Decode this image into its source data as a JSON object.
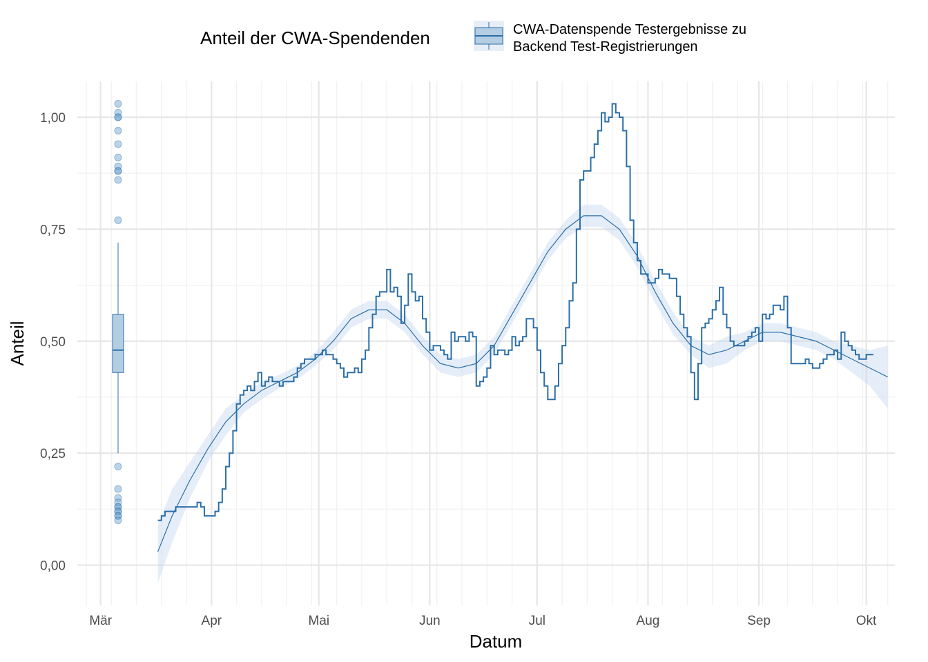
{
  "chart_data": {
    "type": "line",
    "xlabel": "Datum",
    "ylabel": "Anteil",
    "ylim": [
      -0.09,
      1.08
    ],
    "y_ticks": [
      {
        "value": 0.0,
        "label": "0,00"
      },
      {
        "value": 0.25,
        "label": "0,25"
      },
      {
        "value": 0.5,
        "label": "0,50"
      },
      {
        "value": 0.75,
        "label": "0,75"
      },
      {
        "value": 1.0,
        "label": "1,00"
      }
    ],
    "x_day_range": [
      -6.5,
      222
    ],
    "x_ticks": [
      {
        "day": 0,
        "label": "Mär"
      },
      {
        "day": 31,
        "label": "Apr"
      },
      {
        "day": 61,
        "label": "Mai"
      },
      {
        "day": 92,
        "label": "Jun"
      },
      {
        "day": 122,
        "label": "Jul"
      },
      {
        "day": 153,
        "label": "Aug"
      },
      {
        "day": 184,
        "label": "Sep"
      },
      {
        "day": 214,
        "label": "Okt"
      }
    ],
    "legend": {
      "title": "Anteil der CWA-Spendenden",
      "entry_line1": "CWA-Datenspende Testergebnisse zu",
      "entry_line2": "Backend Test-Registrierungen",
      "position": "top"
    },
    "colors": {
      "series": "#2b6ea8",
      "ribbon": "#c6d9f0",
      "box_fill": "#b3cde3",
      "points": "#6a9fcf",
      "grid_major": "#e6e6e6",
      "grid_minor": "#f2f2f2"
    },
    "series": [
      {
        "name": "step",
        "start_day": 16,
        "values": [
          0.1,
          0.11,
          0.12,
          0.12,
          0.12,
          0.13,
          0.13,
          0.13,
          0.13,
          0.13,
          0.13,
          0.14,
          0.13,
          0.11,
          0.11,
          0.11,
          0.12,
          0.14,
          0.17,
          0.22,
          0.25,
          0.3,
          0.36,
          0.38,
          0.39,
          0.4,
          0.39,
          0.41,
          0.43,
          0.4,
          0.41,
          0.42,
          0.41,
          0.41,
          0.4,
          0.41,
          0.41,
          0.41,
          0.42,
          0.44,
          0.45,
          0.46,
          0.46,
          0.46,
          0.47,
          0.47,
          0.48,
          0.47,
          0.47,
          0.46,
          0.45,
          0.44,
          0.42,
          0.43,
          0.43,
          0.44,
          0.43,
          0.46,
          0.48,
          0.53,
          0.56,
          0.6,
          0.61,
          0.61,
          0.66,
          0.61,
          0.62,
          0.6,
          0.54,
          0.58,
          0.65,
          0.61,
          0.59,
          0.6,
          0.55,
          0.52,
          0.48,
          0.49,
          0.49,
          0.48,
          0.47,
          0.46,
          0.52,
          0.5,
          0.51,
          0.51,
          0.5,
          0.52,
          0.51,
          0.4,
          0.41,
          0.42,
          0.44,
          0.49,
          0.47,
          0.48,
          0.48,
          0.47,
          0.48,
          0.51,
          0.49,
          0.5,
          0.51,
          0.55,
          0.55,
          0.53,
          0.48,
          0.43,
          0.4,
          0.37,
          0.37,
          0.4,
          0.45,
          0.49,
          0.53,
          0.59,
          0.63,
          0.75,
          0.86,
          0.88,
          0.88,
          0.91,
          0.94,
          0.97,
          1.01,
          0.99,
          1.0,
          1.03,
          1.01,
          1.0,
          0.97,
          0.89,
          0.77,
          0.72,
          0.68,
          0.65,
          0.65,
          0.63,
          0.63,
          0.64,
          0.66,
          0.65,
          0.65,
          0.64,
          0.64,
          0.6,
          0.56,
          0.53,
          0.51,
          0.43,
          0.37,
          0.45,
          0.53,
          0.54,
          0.55,
          0.57,
          0.59,
          0.62,
          0.56,
          0.53,
          0.5,
          0.49,
          0.49,
          0.49,
          0.5,
          0.51,
          0.52,
          0.53,
          0.5,
          0.56,
          0.55,
          0.56,
          0.58,
          0.58,
          0.57,
          0.6,
          0.53,
          0.45,
          0.45,
          0.45,
          0.45,
          0.46,
          0.45,
          0.44,
          0.44,
          0.45,
          0.46,
          0.47,
          0.47,
          0.48,
          0.46,
          0.52,
          0.5,
          0.49,
          0.48,
          0.47,
          0.46,
          0.46,
          0.47,
          0.47
        ]
      },
      {
        "name": "smooth",
        "days": [
          16,
          20,
          25,
          30,
          35,
          40,
          45,
          50,
          55,
          60,
          65,
          70,
          75,
          80,
          85,
          90,
          95,
          100,
          105,
          110,
          115,
          120,
          125,
          130,
          135,
          140,
          145,
          150,
          155,
          160,
          165,
          170,
          175,
          180,
          185,
          190,
          195,
          200,
          205,
          210,
          215,
          220
        ],
        "values": [
          0.03,
          0.11,
          0.19,
          0.26,
          0.32,
          0.36,
          0.39,
          0.41,
          0.43,
          0.46,
          0.5,
          0.55,
          0.57,
          0.57,
          0.54,
          0.49,
          0.45,
          0.44,
          0.45,
          0.49,
          0.56,
          0.63,
          0.7,
          0.75,
          0.78,
          0.78,
          0.75,
          0.69,
          0.61,
          0.54,
          0.49,
          0.47,
          0.48,
          0.5,
          0.52,
          0.52,
          0.51,
          0.5,
          0.48,
          0.46,
          0.44,
          0.42
        ],
        "lower": [
          -0.04,
          0.05,
          0.15,
          0.23,
          0.29,
          0.34,
          0.37,
          0.395,
          0.415,
          0.445,
          0.48,
          0.53,
          0.55,
          0.55,
          0.52,
          0.47,
          0.43,
          0.42,
          0.43,
          0.47,
          0.54,
          0.61,
          0.68,
          0.73,
          0.755,
          0.755,
          0.725,
          0.665,
          0.585,
          0.515,
          0.47,
          0.44,
          0.45,
          0.48,
          0.5,
          0.5,
          0.49,
          0.48,
          0.46,
          0.43,
          0.4,
          0.35
        ],
        "upper": [
          0.09,
          0.17,
          0.23,
          0.29,
          0.35,
          0.38,
          0.41,
          0.425,
          0.445,
          0.475,
          0.52,
          0.57,
          0.59,
          0.59,
          0.56,
          0.51,
          0.47,
          0.46,
          0.47,
          0.51,
          0.58,
          0.65,
          0.72,
          0.77,
          0.805,
          0.805,
          0.775,
          0.715,
          0.635,
          0.565,
          0.51,
          0.49,
          0.51,
          0.52,
          0.54,
          0.54,
          0.53,
          0.52,
          0.5,
          0.49,
          0.48,
          0.49
        ]
      },
      {
        "name": "boxplot",
        "q1": 0.43,
        "median": 0.48,
        "q3": 0.56,
        "whisker_low": 0.25,
        "whisker_high": 0.72,
        "outliers": [
          1.03,
          1.01,
          1.0,
          1.0,
          0.97,
          0.94,
          0.91,
          0.89,
          0.88,
          0.88,
          0.86,
          0.77,
          0.22,
          0.17,
          0.15,
          0.14,
          0.13,
          0.13,
          0.12,
          0.12,
          0.11,
          0.11,
          0.1
        ]
      }
    ]
  }
}
